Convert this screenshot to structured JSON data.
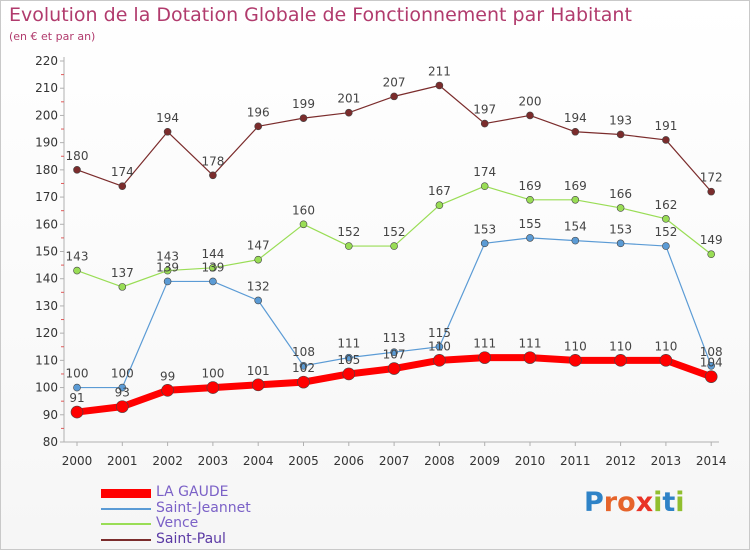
{
  "title": "Evolution de la Dotation Globale de Fonctionnement par Habitant",
  "subtitle": "(en € et par an)",
  "logo": {
    "letters": [
      {
        "ch": "P",
        "color": "#2f83c7"
      },
      {
        "ch": "r",
        "color": "#e6642b"
      },
      {
        "ch": "o",
        "color": "#e6642b"
      },
      {
        "ch": "x",
        "color": "#e93326"
      },
      {
        "ch": "i",
        "color": "#91bf2f"
      },
      {
        "ch": "t",
        "color": "#2f83c7"
      },
      {
        "ch": "i",
        "color": "#91bf2f"
      }
    ]
  },
  "chart_data": {
    "type": "line",
    "x": [
      "2000",
      "2001",
      "2002",
      "2003",
      "2004",
      "2005",
      "2006",
      "2007",
      "2008",
      "2009",
      "2010",
      "2011",
      "2012",
      "2013",
      "2014"
    ],
    "ylim": [
      80,
      220
    ],
    "yticks": [
      80,
      90,
      100,
      110,
      120,
      130,
      140,
      150,
      160,
      170,
      180,
      190,
      200,
      210,
      220
    ],
    "grid": false,
    "legend_position": "bottom-left",
    "series": [
      {
        "name": "LA GAUDE",
        "color": "#ff0000",
        "values": [
          91,
          93,
          99,
          100,
          101,
          102,
          105,
          107,
          110,
          111,
          111,
          110,
          110,
          110,
          104
        ]
      },
      {
        "name": "Saint-Jeannet",
        "color": "#5b9bd5",
        "values": [
          100,
          100,
          139,
          139,
          132,
          108,
          111,
          113,
          115,
          153,
          155,
          154,
          153,
          152,
          108
        ]
      },
      {
        "name": "Vence",
        "color": "#99dd55",
        "values": [
          143,
          137,
          143,
          144,
          147,
          160,
          152,
          152,
          167,
          174,
          169,
          169,
          166,
          162,
          149
        ]
      },
      {
        "name": "Saint-Paul",
        "color": "#7b2c2c",
        "values": [
          180,
          174,
          194,
          178,
          196,
          199,
          201,
          207,
          211,
          197,
          200,
          194,
          193,
          191,
          172
        ]
      }
    ]
  }
}
